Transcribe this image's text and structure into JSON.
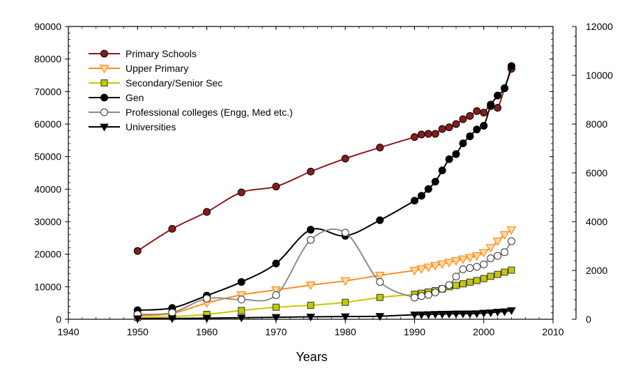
{
  "chart_data": {
    "type": "line",
    "title": "",
    "xlabel": "Years",
    "ylabel": "",
    "y2label": "",
    "xlim": [
      1940,
      2010
    ],
    "ylim": [
      0,
      90000
    ],
    "y2lim": [
      0,
      12000
    ],
    "x_ticks": [
      "1940",
      "1950",
      "1960",
      "1970",
      "1980",
      "1990",
      "2000",
      "2010"
    ],
    "y_ticks": [
      "0",
      "10000",
      "20000",
      "30000",
      "40000",
      "50000",
      "60000",
      "70000",
      "80000",
      "90000"
    ],
    "y2_ticks": [
      "0",
      "2000",
      "4000",
      "6000",
      "8000",
      "10000",
      "12000"
    ],
    "grid": false,
    "legend_position": "top-left",
    "series": [
      {
        "name": "Primary Schools",
        "axis": "left",
        "color": "#8b1a1a",
        "marker": "circle-filled",
        "x": [
          1950,
          1955,
          1960,
          1965,
          1970,
          1975,
          1980,
          1985,
          1990,
          1991,
          1992,
          1993,
          1994,
          1995,
          1996,
          1997,
          1998,
          1999,
          2000,
          2001,
          2002,
          2003,
          2004
        ],
        "y": [
          21000,
          27800,
          33000,
          39000,
          40800,
          45400,
          49400,
          52800,
          56000,
          56800,
          57000,
          57000,
          58500,
          59000,
          60000,
          61500,
          62500,
          64000,
          63500,
          66000,
          65000,
          71000,
          77000
        ]
      },
      {
        "name": "Upper Primary",
        "axis": "left",
        "color": "#ff8c1a",
        "marker": "triangle-down-open",
        "x": [
          1950,
          1955,
          1960,
          1965,
          1970,
          1975,
          1980,
          1985,
          1990,
          1991,
          1992,
          1993,
          1994,
          1995,
          1996,
          1997,
          1998,
          1999,
          2000,
          2001,
          2002,
          2003,
          2004
        ],
        "y": [
          1000,
          1800,
          5000,
          7500,
          9000,
          10500,
          11800,
          13500,
          15000,
          15500,
          16000,
          16500,
          17000,
          17500,
          18000,
          18500,
          19000,
          19500,
          20500,
          22000,
          24000,
          26000,
          27500
        ]
      },
      {
        "name": "Secondary/Senior Sec",
        "axis": "left",
        "color": "#c8c800",
        "marker": "square-filled",
        "x": [
          1950,
          1955,
          1960,
          1965,
          1970,
          1975,
          1980,
          1985,
          1990,
          1991,
          1992,
          1993,
          1994,
          1995,
          1996,
          1997,
          1998,
          1999,
          2000,
          2001,
          2002,
          2003,
          2004
        ],
        "y": [
          500,
          800,
          1500,
          2700,
          3700,
          4300,
          5200,
          6700,
          7700,
          8000,
          8400,
          8800,
          9300,
          10000,
          10400,
          10900,
          11400,
          11900,
          12500,
          13200,
          13800,
          14500,
          15100
        ]
      },
      {
        "name": "Gen",
        "axis": "right",
        "color": "#000000",
        "marker": "circle-filled",
        "x": [
          1950,
          1955,
          1960,
          1965,
          1970,
          1975,
          1980,
          1985,
          1990,
          1991,
          1992,
          1993,
          1994,
          1995,
          1996,
          1997,
          1998,
          1999,
          2000,
          2001,
          2002,
          2003,
          2004
        ],
        "y": [
          370,
          465,
          970,
          1530,
          2285,
          3670,
          3420,
          4060,
          4860,
          5060,
          5340,
          5640,
          6100,
          6560,
          6770,
          7210,
          7500,
          7780,
          7930,
          8740,
          9170,
          9470,
          10380
        ]
      },
      {
        "name": "Professional colleges (Engg, Med etc.)",
        "axis": "right",
        "color": "#ffffff",
        "line_color": "#8c8c8c",
        "marker": "circle-open",
        "x": [
          1950,
          1955,
          1960,
          1965,
          1970,
          1975,
          1980,
          1985,
          1990,
          1991,
          1992,
          1993,
          1994,
          1995,
          1996,
          1997,
          1998,
          1999,
          2000,
          2001,
          2002,
          2003,
          2004
        ],
        "y": [
          200,
          270,
          850,
          810,
          990,
          3250,
          3550,
          1530,
          890,
          950,
          1000,
          1100,
          1250,
          1400,
          1750,
          2050,
          2100,
          2150,
          2250,
          2500,
          2600,
          2750,
          3200
        ]
      },
      {
        "name": "Universities",
        "axis": "right",
        "color": "#000000",
        "marker": "triangle-down-filled",
        "x": [
          1950,
          1955,
          1960,
          1965,
          1970,
          1975,
          1980,
          1985,
          1990,
          1991,
          1992,
          1993,
          1994,
          1995,
          1996,
          1997,
          1998,
          1999,
          2000,
          2001,
          2002,
          2003,
          2004
        ],
        "y": [
          30,
          32,
          45,
          64,
          82,
          101,
          110,
          126,
          184,
          190,
          196,
          207,
          213,
          219,
          226,
          228,
          229,
          237,
          256,
          272,
          300,
          315,
          360
        ]
      }
    ]
  }
}
